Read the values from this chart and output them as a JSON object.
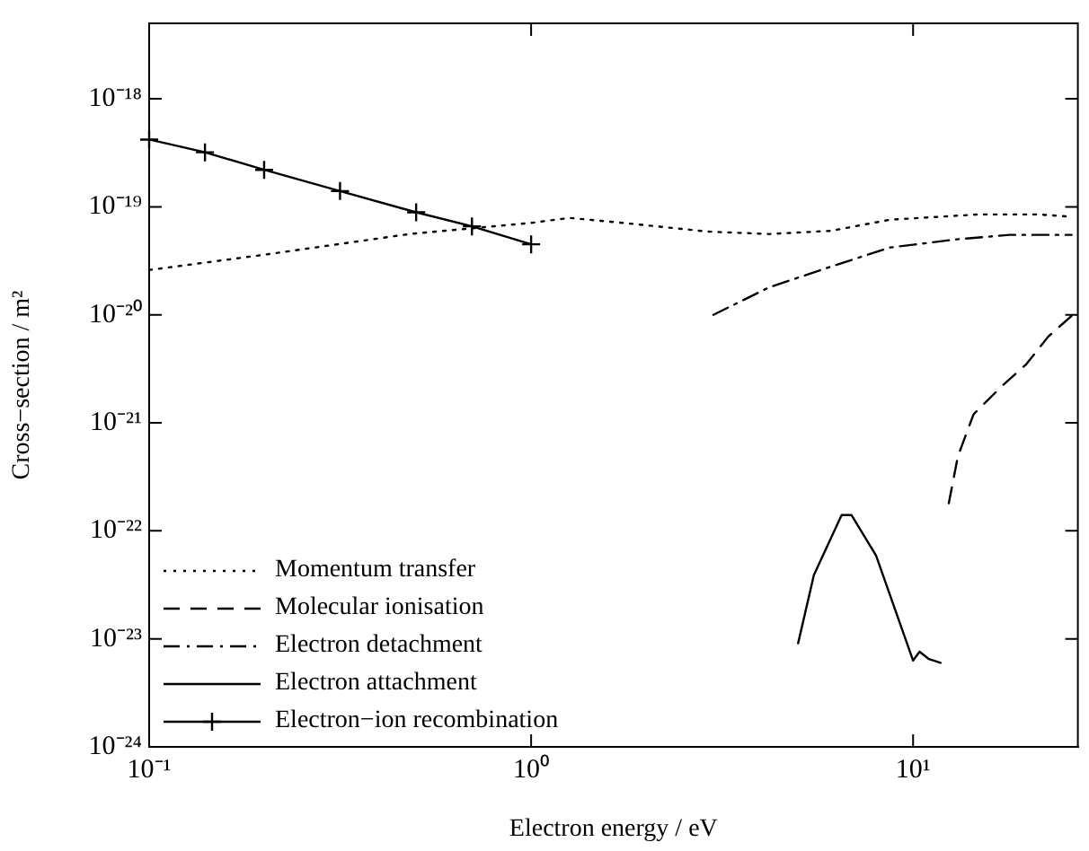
{
  "chart_data": {
    "type": "line",
    "xlabel": "Electron energy / eV",
    "ylabel": "Cross−section / m²",
    "log": "xy",
    "grid": false,
    "legend": "bottom left",
    "xlim": [
      0.1,
      27
    ],
    "xticks": [
      {
        "value": 0.1,
        "label": "10⁻¹"
      },
      {
        "value": 1,
        "label": "10⁰"
      },
      {
        "value": 10,
        "label": "10¹"
      }
    ],
    "ylim": [
      1e-24,
      5e-18
    ],
    "yticks": [
      {
        "value": 1e-24,
        "label": "10⁻²⁴"
      },
      {
        "value": 1e-23,
        "label": "10⁻²³"
      },
      {
        "value": 1e-22,
        "label": "10⁻²²"
      },
      {
        "value": 1e-21,
        "label": "10⁻²¹"
      },
      {
        "value": 1e-20,
        "label": "10⁻²⁰"
      },
      {
        "value": 1e-19,
        "label": "10⁻¹⁹"
      },
      {
        "value": 1e-18,
        "label": "10⁻¹⁸"
      }
    ],
    "series": [
      {
        "name": "Momentum transfer",
        "color": "#000000",
        "line_style": "dotted",
        "marker": "none",
        "x": [
          0.1,
          0.2,
          0.48,
          1,
          1.26,
          1.74,
          2.9,
          4.2,
          6.1,
          8.7,
          14.8,
          21.3,
          26
        ],
        "values": [
          2.6e-20,
          3.6e-20,
          5.6e-20,
          7.1e-20,
          7.9e-20,
          7.1e-20,
          5.9e-20,
          5.6e-20,
          6e-20,
          7.6e-20,
          8.5e-20,
          8.5e-20,
          8.1e-20
        ]
      },
      {
        "name": "Molecular ionisation",
        "color": "#000000",
        "line_style": "dashed",
        "marker": "none",
        "x": [
          12.4,
          13.1,
          14.4,
          17.1,
          19.8,
          22.6,
          26
        ],
        "values": [
          1.8e-22,
          4.9e-22,
          1.2e-21,
          2.2e-21,
          3.5e-21,
          6.3e-21,
          9.8e-21
        ]
      },
      {
        "name": "Electron detachment",
        "color": "#000000",
        "line_style": "dashdot",
        "marker": "none",
        "x": [
          3,
          4.2,
          6.1,
          8.7,
          13,
          17.9,
          26
        ],
        "values": [
          1e-20,
          1.8e-20,
          2.8e-20,
          4.2e-20,
          5e-20,
          5.5e-20,
          5.5e-20
        ]
      },
      {
        "name": "Electron attachment",
        "color": "#000000",
        "line_style": "solid",
        "marker": "none",
        "x": [
          5,
          5.5,
          6,
          6.5,
          6.9,
          8,
          10,
          10.4,
          11,
          11.8
        ],
        "values": [
          9.1e-24,
          3.9e-23,
          7.6e-23,
          1.4e-22,
          1.4e-22,
          5.9e-23,
          6.3e-24,
          7.6e-24,
          6.5e-24,
          6e-24
        ]
      },
      {
        "name": "Electron−ion recombination",
        "color": "#000000",
        "line_style": "solid",
        "marker": "cross",
        "x": [
          0.1,
          0.14,
          0.2,
          0.316,
          0.5,
          0.7,
          1
        ],
        "values": [
          4.2e-19,
          3.2e-19,
          2.2e-19,
          1.4e-19,
          8.9e-20,
          6.6e-20,
          4.5e-20
        ]
      }
    ]
  }
}
